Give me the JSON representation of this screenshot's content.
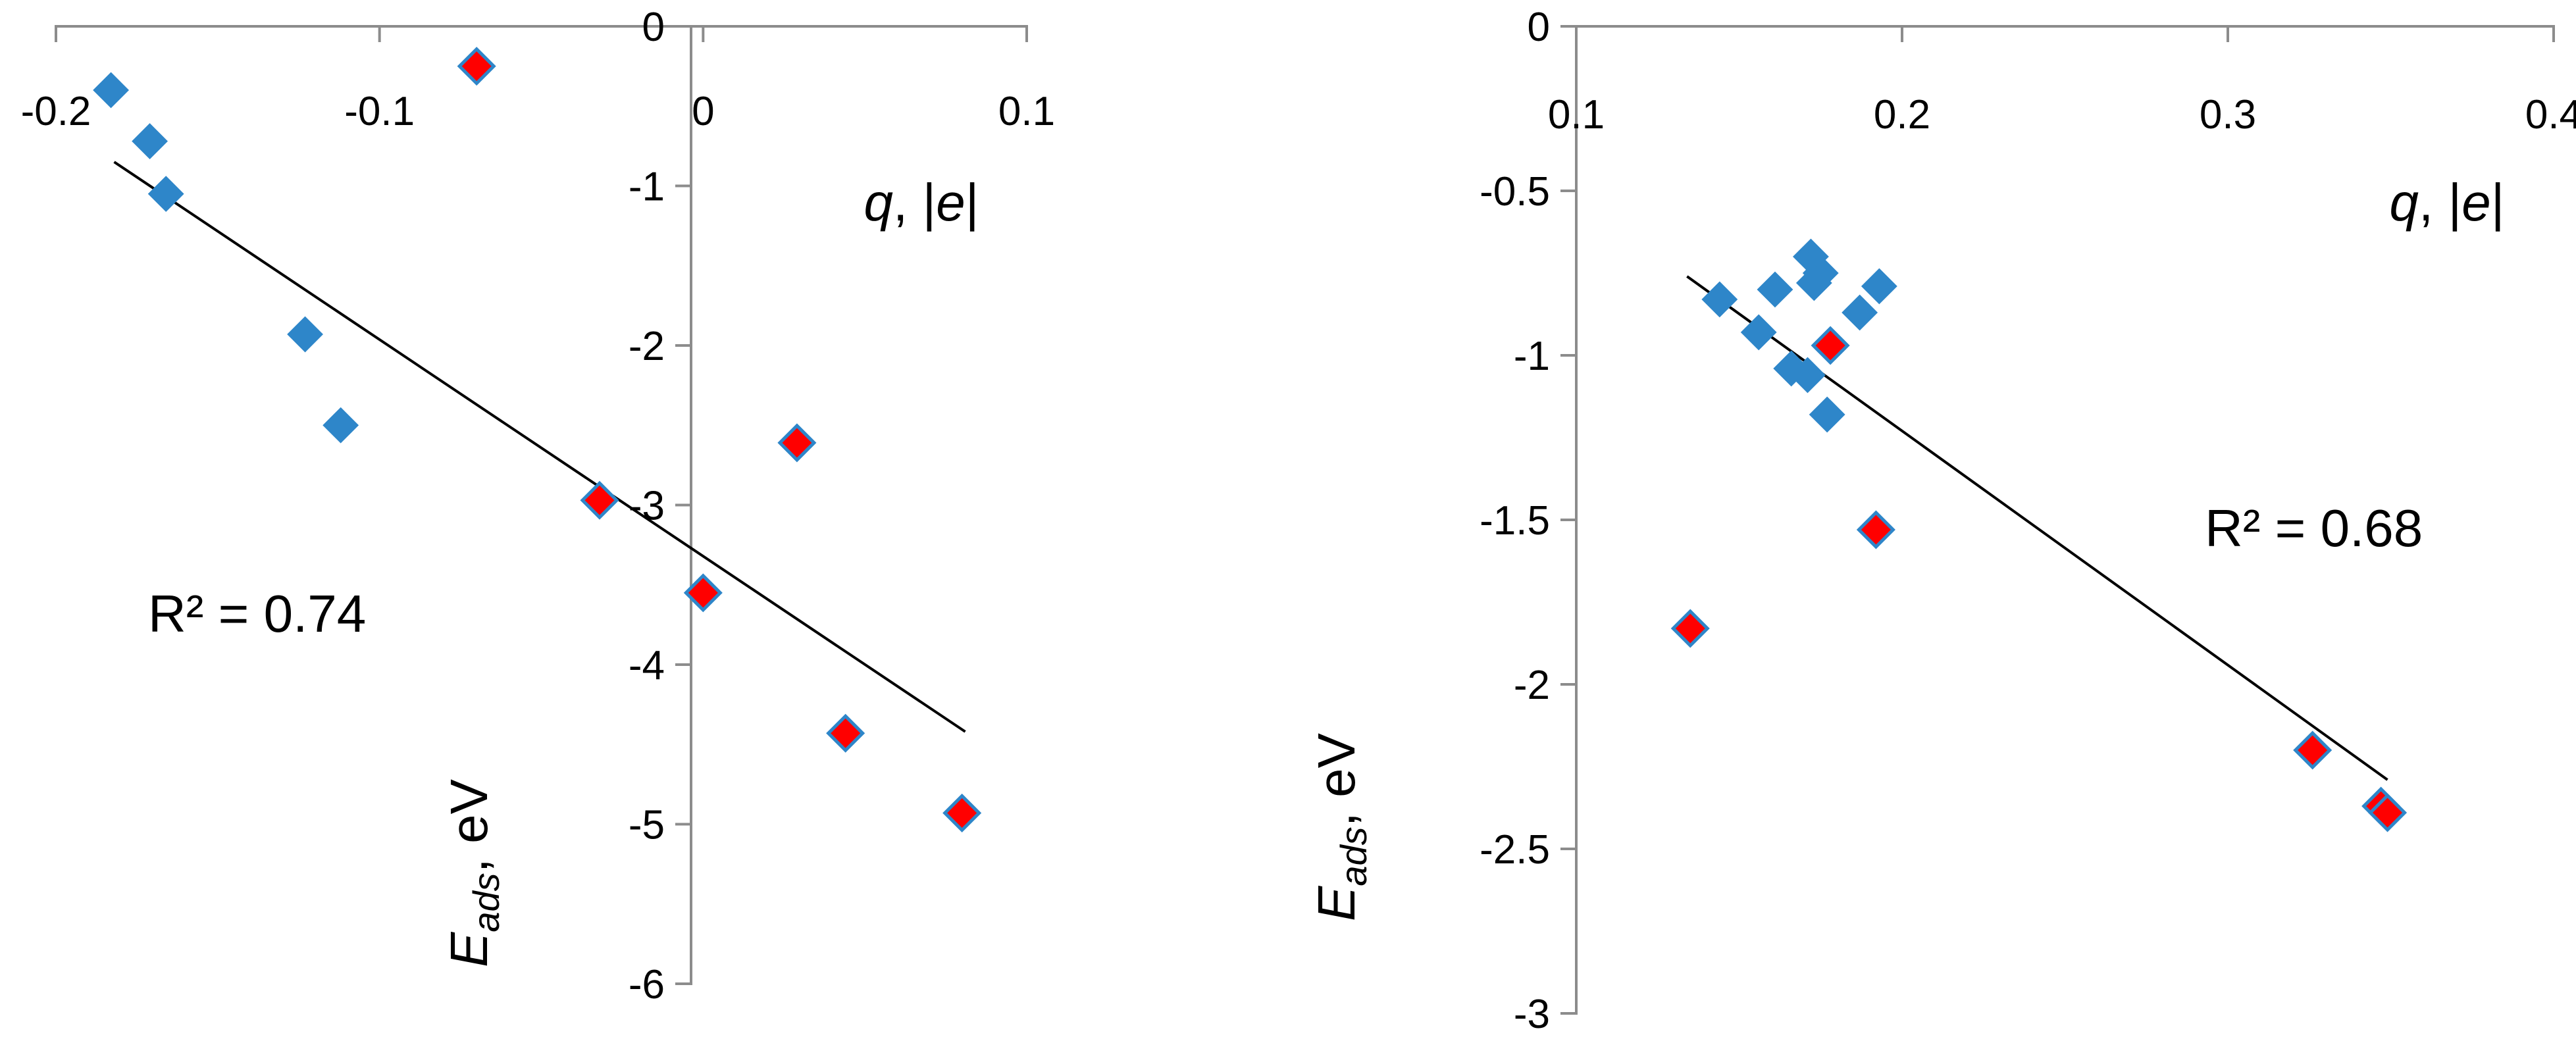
{
  "colors": {
    "blue": "#2E86C9",
    "red": "#FF0000",
    "axis": "#8C8C8C",
    "trend": "#000000"
  },
  "chart_data": [
    {
      "type": "scatter",
      "xlim": [
        -0.2,
        0.1
      ],
      "ylim": [
        -6,
        0
      ],
      "xticks": [
        -0.2,
        -0.1,
        0,
        0.1
      ],
      "xtick_labels": [
        "-0.2",
        "-0.1",
        "0",
        "0.1"
      ],
      "yticks": [
        0,
        -1,
        -2,
        -3,
        -4,
        -5,
        -6
      ],
      "ytick_labels": [
        "0",
        "-1",
        "-2",
        "-3",
        "-4",
        "-5",
        "-6"
      ],
      "xlabel_italic": "q",
      "xlabel_rest": ", |",
      "xlabel_e": "e",
      "xlabel_end": "|",
      "ylabel_main": "E",
      "ylabel_sub": "ads",
      "ylabel_unit": ", eV",
      "r2_label": "R² = 0.74",
      "trendline": {
        "x": [
          -0.182,
          0.081
        ],
        "y": [
          -0.85,
          -4.42
        ]
      },
      "series": [
        {
          "name": "blue",
          "x": [
            -0.183,
            -0.171,
            -0.166,
            -0.123,
            -0.112
          ],
          "y": [
            -0.4,
            -0.72,
            -1.05,
            -1.93,
            -2.5
          ]
        },
        {
          "name": "red",
          "x": [
            -0.07,
            -0.032,
            0.029,
            0.0,
            0.044,
            0.08
          ],
          "y": [
            -0.25,
            -2.97,
            -2.61,
            -3.55,
            -4.43,
            -4.93
          ]
        }
      ]
    },
    {
      "type": "scatter",
      "xlim": [
        0.1,
        0.4
      ],
      "ylim": [
        -3,
        0
      ],
      "xticks": [
        0.1,
        0.2,
        0.3,
        0.4
      ],
      "xtick_labels": [
        "0.1",
        "0.2",
        "0.3",
        "0.4"
      ],
      "yticks": [
        0,
        -0.5,
        -1,
        -1.5,
        -2,
        -2.5,
        -3
      ],
      "ytick_labels": [
        "0",
        "-0.5",
        "-1",
        "-1.5",
        "-2",
        "-2.5",
        "-3"
      ],
      "xlabel_italic": "q",
      "xlabel_rest": ", |",
      "xlabel_e": "e",
      "xlabel_end": "|",
      "ylabel_main": "E",
      "ylabel_sub": "ads",
      "ylabel_unit": ", eV",
      "r2_label": "R² = 0.68",
      "trendline": {
        "x": [
          0.134,
          0.349
        ],
        "y": [
          -0.76,
          -2.29
        ]
      },
      "series": [
        {
          "name": "blue",
          "x": [
            0.172,
            0.175,
            0.161,
            0.144,
            0.156,
            0.166,
            0.171,
            0.177,
            0.187,
            0.193,
            0.173
          ],
          "y": [
            -0.7,
            -0.75,
            -0.8,
            -0.83,
            -0.93,
            -1.04,
            -1.06,
            -1.18,
            -0.87,
            -0.79,
            -0.78
          ]
        },
        {
          "name": "red",
          "x": [
            0.178,
            0.192,
            0.135,
            0.326,
            0.347,
            0.349
          ],
          "y": [
            -0.97,
            -1.53,
            -1.83,
            -2.2,
            -2.37,
            -2.39
          ]
        }
      ]
    }
  ]
}
